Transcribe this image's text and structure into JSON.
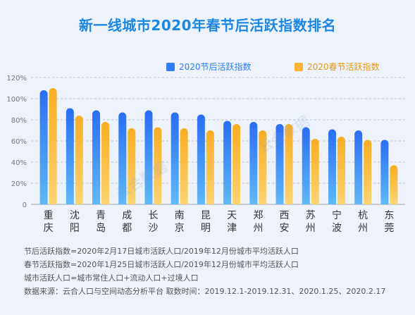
{
  "title": "新一线城市2020年春节后活跃指数排名",
  "colors": {
    "series1": "#2f7cf6",
    "series2": "#f9b531",
    "title": "#1b86e3",
    "axis": "#888888"
  },
  "watermark": "云合数据",
  "chart_data": {
    "type": "bar",
    "categories": [
      [
        "重",
        "庆"
      ],
      [
        "沈",
        "阳"
      ],
      [
        "青",
        "岛"
      ],
      [
        "成",
        "都"
      ],
      [
        "长",
        "沙"
      ],
      [
        "南",
        "京"
      ],
      [
        "昆",
        "明"
      ],
      [
        "天",
        "津"
      ],
      [
        "郑",
        "州"
      ],
      [
        "西",
        "安"
      ],
      [
        "苏",
        "州"
      ],
      [
        "宁",
        "波"
      ],
      [
        "杭",
        "州"
      ],
      [
        "东",
        "莞"
      ]
    ],
    "series": [
      {
        "name": "2020节后活跃指数",
        "values": [
          108,
          91,
          89,
          87,
          89,
          87,
          85,
          79,
          78,
          76,
          73,
          71,
          70,
          61
        ]
      },
      {
        "name": "2020春节活跃指数",
        "values": [
          110,
          84,
          78,
          72,
          73,
          72,
          70,
          76,
          70,
          76,
          62,
          64,
          61,
          37
        ]
      }
    ],
    "yticks": [
      "0",
      "20%",
      "40%",
      "60%",
      "80%",
      "100%",
      "120%"
    ],
    "ylim": [
      0,
      120
    ],
    "grid": true,
    "legend": "top"
  },
  "notes": [
    "节后活跃指数=2020年2月17日城市活跃人口/2019年12月份城市平均活跃人口",
    "春节活跃指数=2020年1月25日城市活跃人口/2019年12月份城市平均活跃人口",
    "城市活跃人口=城市常住人口+流动人口+过境人口",
    "数据来源：云合人口与空间动态分析平台 取数时间：2019.12.1-2019.12.31、2020.1.25、2020.2.17"
  ]
}
